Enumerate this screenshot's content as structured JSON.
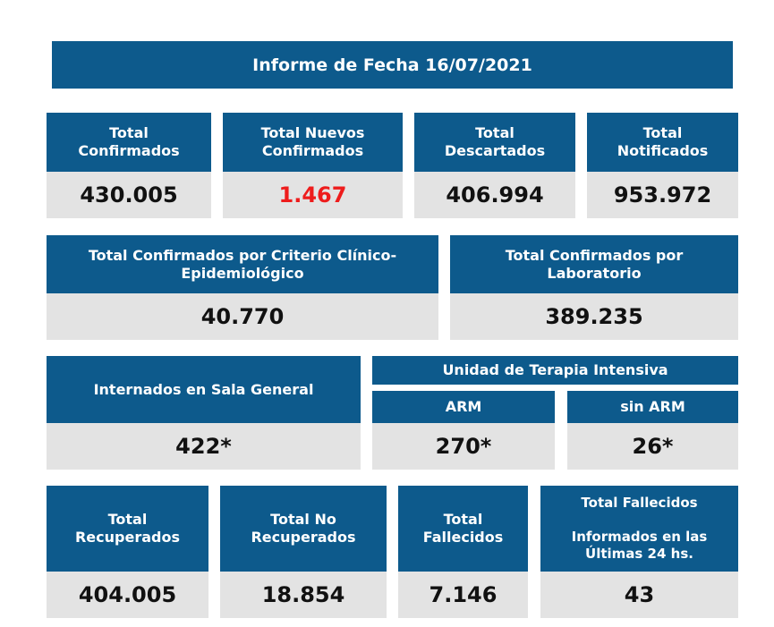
{
  "title": "Informe de Fecha 16/07/2021",
  "row1": [
    {
      "label": "Total\nConfirmados",
      "value": "430.005"
    },
    {
      "label": "Total Nuevos\nConfirmados",
      "value": "1.467"
    },
    {
      "label": "Total\nDescartados",
      "value": "406.994"
    },
    {
      "label": "Total\nNotificados",
      "value": "953.972"
    }
  ],
  "row2": [
    {
      "label": "Total Confirmados por Criterio Clínico-\nEpidemiológico",
      "value": "40.770"
    },
    {
      "label": "Total Confirmados por\nLaboratorio",
      "value": "389.235"
    }
  ],
  "row3": {
    "general": {
      "label": "Internados en Sala General",
      "value": "422*"
    },
    "uti_title": "Unidad de Terapia Intensiva",
    "arm": {
      "label": "ARM",
      "value": "270*"
    },
    "sin_arm": {
      "label": "sin ARM",
      "value": "26*"
    }
  },
  "row4": [
    {
      "label": "Total\nRecuperados",
      "value": "404.005"
    },
    {
      "label": "Total No\nRecuperados",
      "value": "18.854"
    },
    {
      "label": "Total\nFallecidos",
      "value": "7.146"
    },
    {
      "label": "Total Fallecidos\n\nInformados en las\nÚltimas 24 hs.",
      "value": "43"
    }
  ],
  "colors": {
    "header_bg": "#0d5a8c",
    "value_bg": "#e3e3e3",
    "highlight": "#ee1c1c"
  }
}
